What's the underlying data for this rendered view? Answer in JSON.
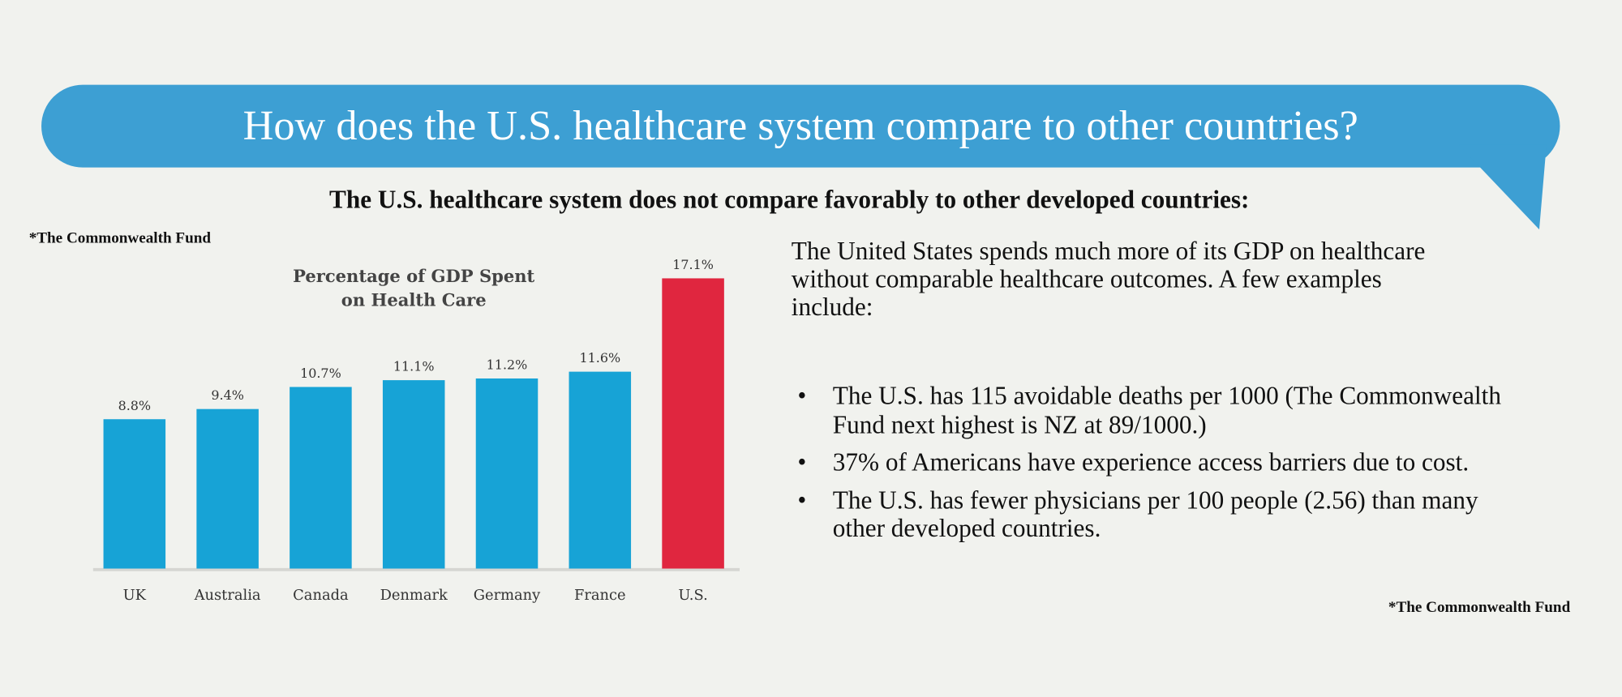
{
  "header": {
    "title": "How does the U.S. healthcare system compare to other countries?",
    "subtitle": "The U.S. healthcare system does not compare favorably to other developed countries:"
  },
  "colors": {
    "bubble": "#3d9fd3",
    "bar": "#17a3d6",
    "highlight_bar": "#e0263f",
    "background": "#f1f2ee"
  },
  "source_left": "*The Commonwealth Fund",
  "chart_data": {
    "type": "bar",
    "title": "Percentage of GDP Spent on Health Care",
    "title_lines": [
      "Percentage of GDP Spent",
      "on Health Care"
    ],
    "categories": [
      "UK",
      "Australia",
      "Canada",
      "Denmark",
      "Germany",
      "France",
      "U.S."
    ],
    "values": [
      8.8,
      9.4,
      10.7,
      11.1,
      11.2,
      11.6,
      17.1
    ],
    "data_labels": [
      "8.8%",
      "9.4%",
      "10.7%",
      "11.1%",
      "11.2%",
      "11.6%",
      "17.1%"
    ],
    "highlight": "U.S.",
    "xlabel": "",
    "ylabel": "",
    "ylim": [
      0,
      33.5
    ],
    "grid": false,
    "unit": "%"
  },
  "text": {
    "intro": "The United States spends much more of its GDP on healthcare without comparable healthcare outcomes. A few examples include:",
    "bullets": [
      "The U.S. has 115 avoidable deaths per 1000 (The Commonwealth Fund next highest is NZ at 89/1000.)",
      "37% of Americans have experience access barriers due to cost.",
      "The U.S. has fewer physicians per 100 people (2.56) than many other developed countries."
    ],
    "bullet_glyph": "•",
    "source": "*The Commonwealth Fund"
  }
}
